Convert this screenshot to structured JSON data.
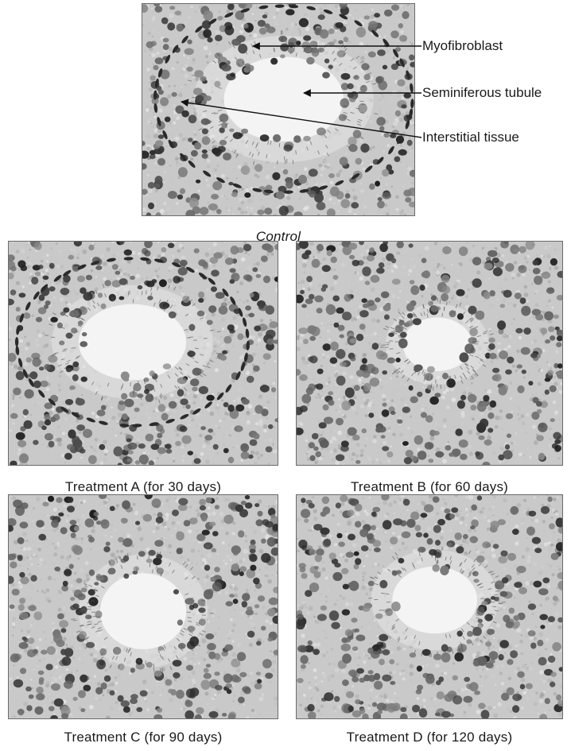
{
  "figure": {
    "panels": [
      {
        "id": "control",
        "caption": "Control"
      },
      {
        "id": "treatment-a",
        "caption": "Treatment A (for 30 days)"
      },
      {
        "id": "treatment-b",
        "caption": "Treatment B (for 60 days)"
      },
      {
        "id": "treatment-c",
        "caption": "Treatment C (for 90 days)"
      },
      {
        "id": "treatment-d",
        "caption": "Treatment D (for 120 days)"
      }
    ],
    "annotations": {
      "myofibroblast": "Myofibroblast",
      "seminiferous_tubule": "Seminiferous tubule",
      "interstitial_tissue": "Interstitial tissue"
    }
  }
}
